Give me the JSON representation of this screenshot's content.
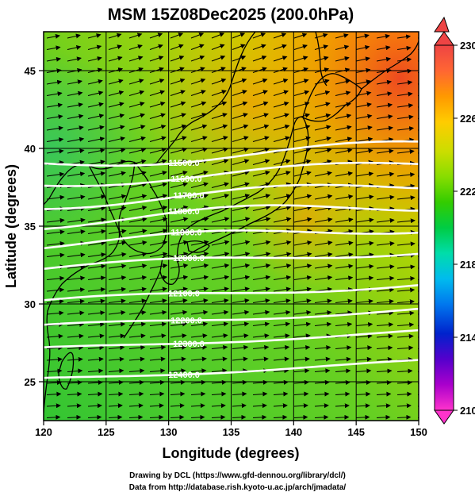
{
  "title": "MSM 15Z08Dec2025 (200.0hPa)",
  "x_axis": {
    "label": "Longitude (degrees)",
    "min": 120,
    "max": 150,
    "ticks": [
      120,
      125,
      130,
      135,
      140,
      145,
      150
    ]
  },
  "y_axis": {
    "label": "Latitude  (degrees)",
    "min": 22.5,
    "max": 47.5,
    "ticks": [
      25,
      30,
      35,
      40,
      45
    ]
  },
  "colorbar": {
    "min": 210,
    "max": 230,
    "tick_labels": [
      230,
      226,
      222,
      218,
      214,
      210
    ],
    "colors": [
      "#ff33cc",
      "#aa00cc",
      "#5500cc",
      "#0022cc",
      "#0077ee",
      "#00bbee",
      "#00ddaa",
      "#00cc44",
      "#33cc00",
      "#88dd00",
      "#ccdd00",
      "#ffcc00",
      "#ff9900",
      "#ff6633",
      "#ee4444"
    ]
  },
  "contours": {
    "color": "#ffffff",
    "labels": [
      "11500.0",
      "11600.0",
      "11700.0",
      "11800.0",
      "11900.0",
      "12000.0",
      "12100.0",
      "12200.0",
      "12300.0",
      "12400.0"
    ]
  },
  "credits": {
    "line1": "Drawing by DCL (https://www.gfd-dennou.org/library/dcl/)",
    "line2": "Data from http://database.rish.kyoto-u.ac.jp/arch/jmadata/"
  }
}
